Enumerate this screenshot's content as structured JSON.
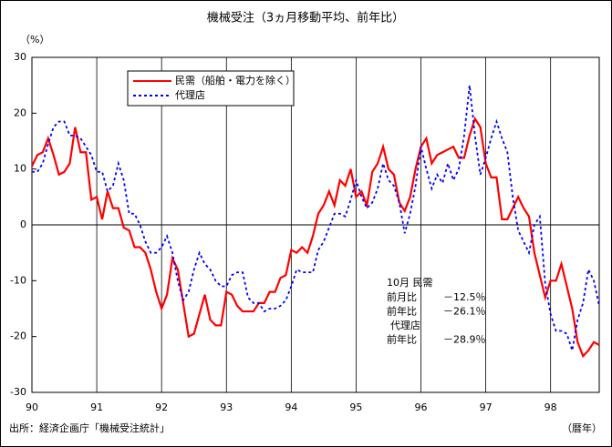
{
  "chart_data": {
    "type": "line",
    "title": "機械受注（3ヵ月移動平均、前年比）",
    "y_unit_label": "（%）",
    "x_unit_label": "（暦年）",
    "source": "出所：経済企画庁「機械受注統計」",
    "categories": [
      "90",
      null,
      null,
      null,
      null,
      null,
      null,
      null,
      null,
      null,
      null,
      null,
      "91",
      null,
      null,
      null,
      null,
      null,
      null,
      null,
      null,
      null,
      null,
      null,
      "92",
      null,
      null,
      null,
      null,
      null,
      null,
      null,
      null,
      null,
      null,
      null,
      "93",
      null,
      null,
      null,
      null,
      null,
      null,
      null,
      null,
      null,
      null,
      null,
      "94",
      null,
      null,
      null,
      null,
      null,
      null,
      null,
      null,
      null,
      null,
      null,
      "95",
      null,
      null,
      null,
      null,
      null,
      null,
      null,
      null,
      null,
      null,
      null,
      "96",
      null,
      null,
      null,
      null,
      null,
      null,
      null,
      null,
      null,
      null,
      null,
      "97",
      null,
      null,
      null,
      null,
      null,
      null,
      null,
      null,
      null,
      null,
      null,
      "98",
      null,
      null,
      null,
      null,
      null,
      null,
      null,
      null,
      null
    ],
    "ylim": [
      -30,
      30
    ],
    "yticks": [
      -30,
      -20,
      -10,
      0,
      10,
      20,
      30
    ],
    "xgrid": true,
    "zero_line": true,
    "series": [
      {
        "name": "民需（船舶・電力を除く）",
        "color": "#ff0000",
        "dash": "solid",
        "values": [
          10.5,
          12.5,
          13,
          15.5,
          12.5,
          9,
          9.5,
          11,
          17.5,
          13,
          13,
          4.5,
          5,
          1,
          6,
          3,
          3,
          -0.5,
          -1,
          -4,
          -4,
          -5,
          -8,
          -12,
          -15,
          -12.5,
          -6,
          -8,
          -14,
          -20,
          -19.5,
          -16,
          -12.5,
          -17,
          -18,
          -18,
          -12,
          -12.5,
          -14.5,
          -15.5,
          -15.5,
          -15.5,
          -14,
          -14,
          -12,
          -12,
          -9.5,
          -9,
          -4.5,
          -5,
          -4,
          -5,
          -2,
          2,
          3.5,
          6,
          3.5,
          8,
          7,
          10,
          5,
          6,
          3.5,
          9.5,
          11,
          14,
          10,
          9,
          4,
          2.5,
          5,
          10,
          14,
          15.5,
          11,
          12.5,
          13,
          13.5,
          14,
          12,
          12,
          16,
          19,
          17.5,
          11,
          8.5,
          8.5,
          1,
          1,
          3,
          5,
          3,
          1.5,
          -5,
          -9,
          -13,
          -10,
          -10,
          -7,
          -11,
          -15,
          -21,
          -23.5,
          -22.5,
          -21,
          -21.5
        ]
      },
      {
        "name": "代理店",
        "color": "#0000ff",
        "dash": "dotted",
        "values": [
          9.5,
          9.5,
          11,
          14.5,
          17.5,
          18.5,
          18.5,
          16,
          16,
          15.5,
          14,
          12.5,
          9.5,
          9.5,
          6,
          7,
          11,
          8,
          2,
          2,
          0,
          -3,
          -5,
          -5,
          -4,
          -2,
          -5,
          -10,
          -13.5,
          -12,
          -8,
          -5,
          -7,
          -8,
          -10,
          -11,
          -11,
          -9,
          -8.5,
          -8.5,
          -13,
          -14,
          -14,
          -15.5,
          -15,
          -15,
          -14.5,
          -13.5,
          -11,
          -8,
          -8.5,
          -8.5,
          -8.5,
          -4.5,
          -3,
          -0.5,
          2,
          2,
          1.5,
          4.5,
          8,
          5,
          3,
          4,
          6.5,
          11,
          8,
          7,
          4,
          -1.5,
          2,
          7,
          14,
          10,
          6.5,
          9,
          7.5,
          11,
          8,
          10,
          16,
          25,
          16,
          9,
          12,
          15.5,
          18.5,
          15.5,
          13,
          5,
          -1,
          -3,
          -5,
          0,
          1.5,
          -10.5,
          -16,
          -19,
          -19,
          -19.5,
          -22.5,
          -17,
          -14,
          -8,
          -10,
          -14.5
        ]
      }
    ],
    "annotation": {
      "heading": "10月  民需",
      "rows": [
        {
          "label": "前月比",
          "value": "－12.5％"
        },
        {
          "label": "前年比",
          "value": "－26.1％"
        },
        {
          "label": "代理店",
          "value": null
        },
        {
          "label": "前年比",
          "value": "－28.9％"
        }
      ]
    }
  }
}
